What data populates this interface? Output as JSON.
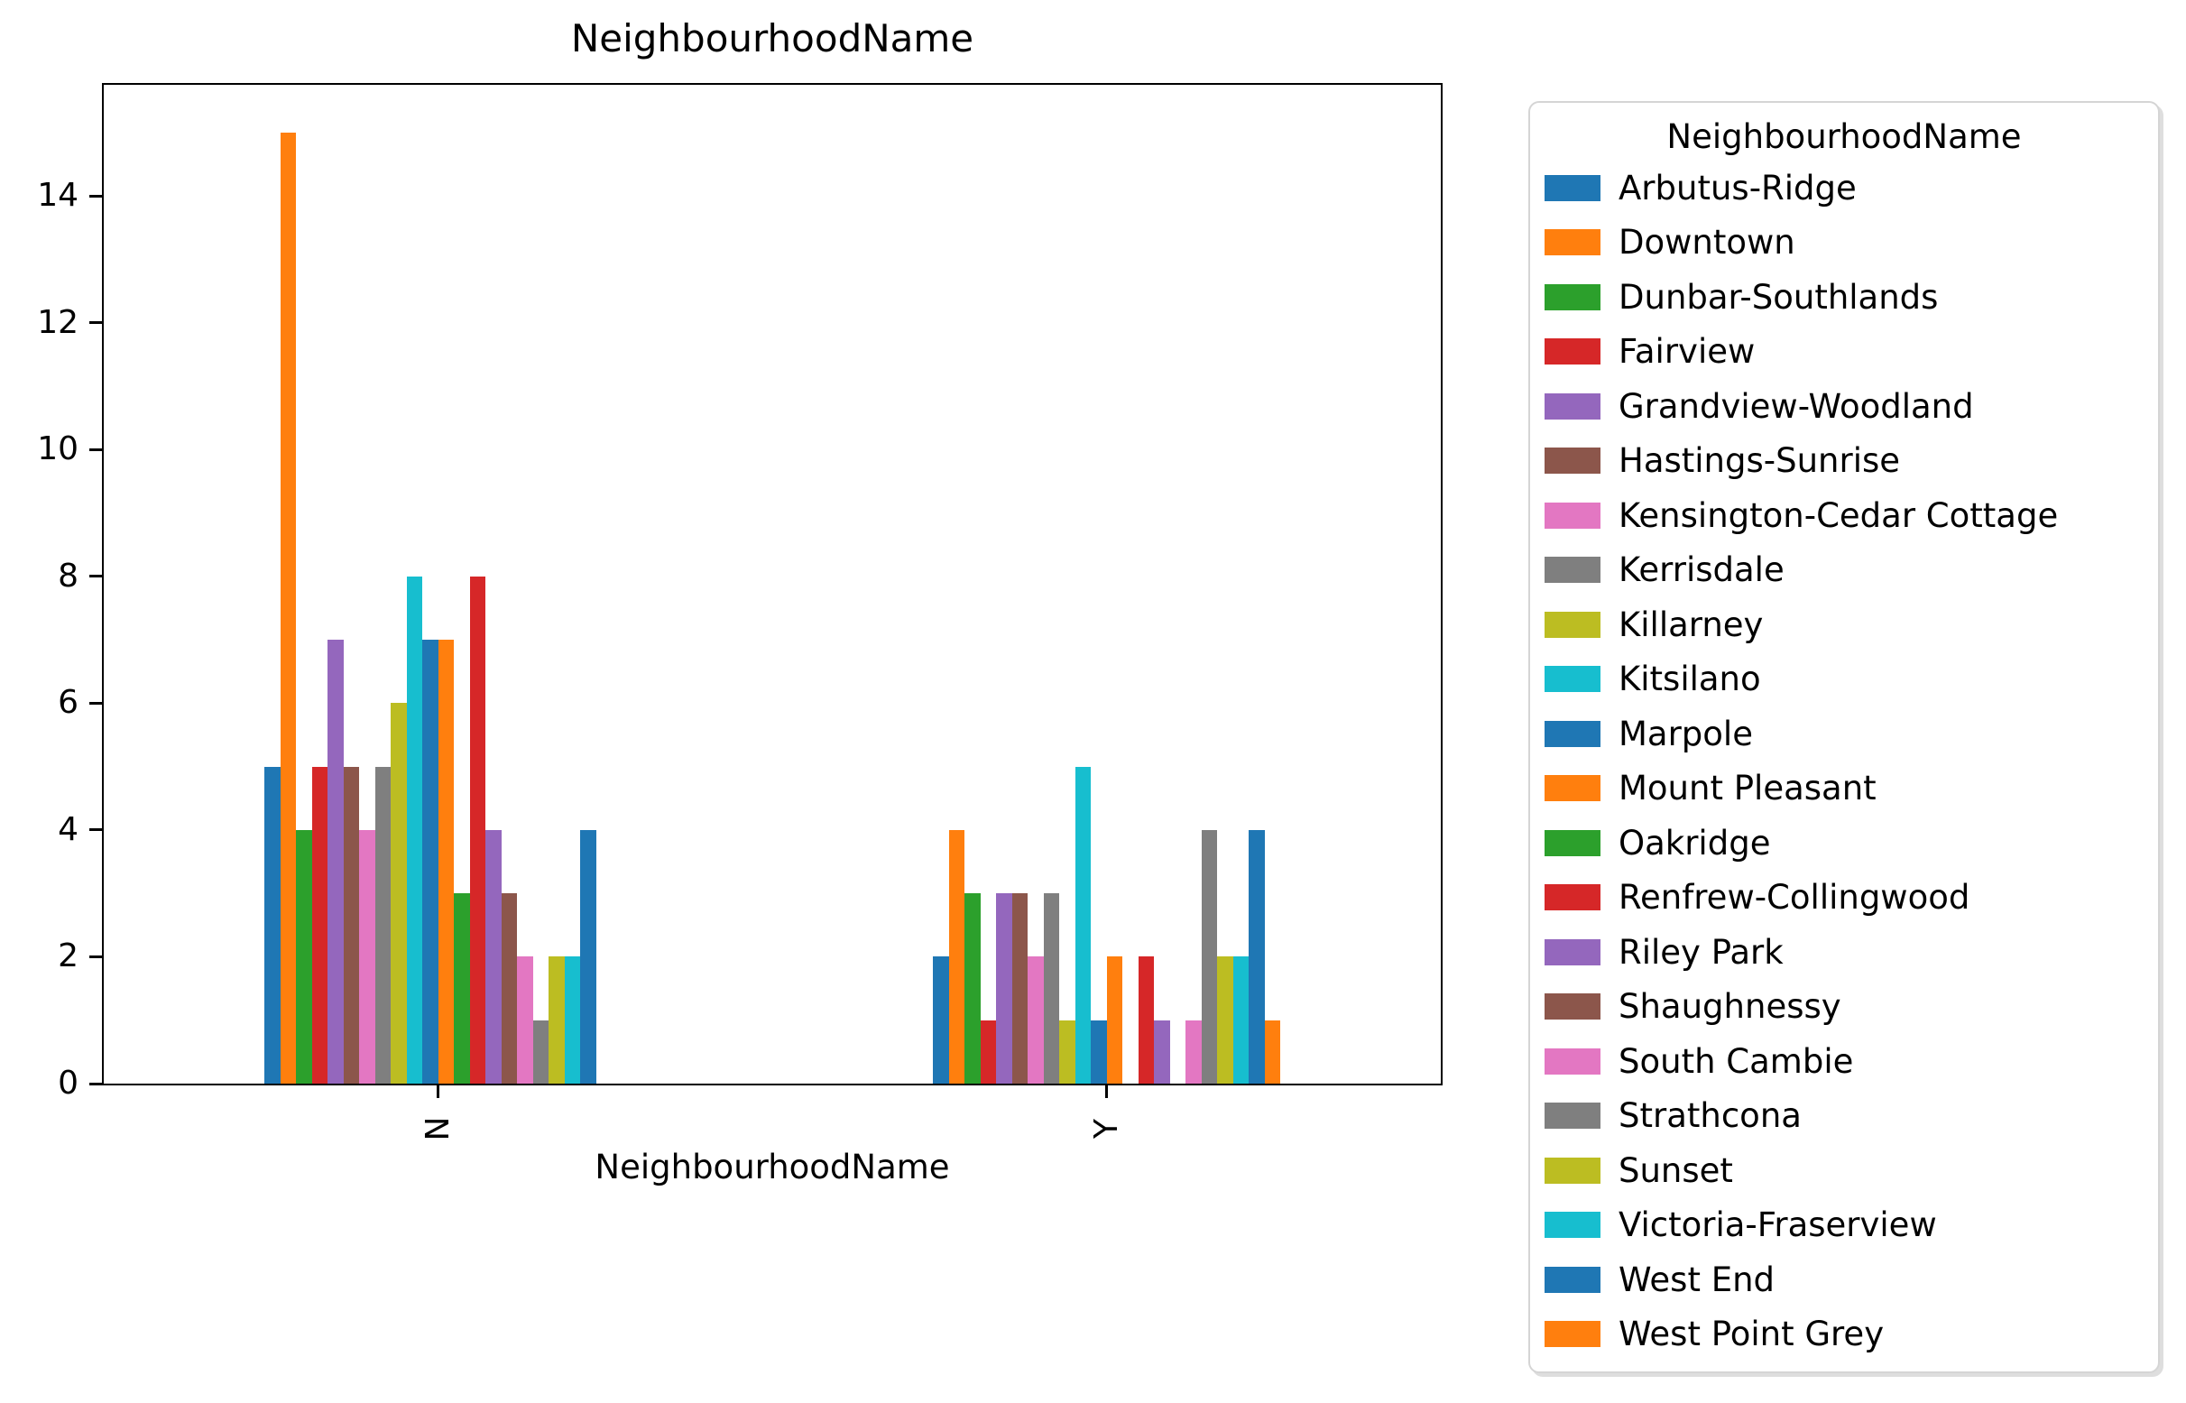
{
  "chart_data": {
    "type": "bar",
    "title": "NeighbourhoodName",
    "xlabel": "NeighbourhoodName",
    "ylabel": "",
    "legend_title": "NeighbourhoodName",
    "legend_position": "right",
    "grid": false,
    "categories": [
      "N",
      "Y"
    ],
    "yticks": [
      0,
      2,
      4,
      6,
      8,
      10,
      12,
      14
    ],
    "ylim": [
      0,
      15.75
    ],
    "series": [
      {
        "name": "Arbutus-Ridge",
        "color": "#1f77b4",
        "values": [
          5,
          2
        ]
      },
      {
        "name": "Downtown",
        "color": "#ff7f0e",
        "values": [
          15,
          4
        ]
      },
      {
        "name": "Dunbar-Southlands",
        "color": "#2ca02c",
        "values": [
          4,
          3
        ]
      },
      {
        "name": "Fairview",
        "color": "#d62728",
        "values": [
          5,
          1
        ]
      },
      {
        "name": "Grandview-Woodland",
        "color": "#9467bd",
        "values": [
          7,
          3
        ]
      },
      {
        "name": "Hastings-Sunrise",
        "color": "#8c564b",
        "values": [
          5,
          3
        ]
      },
      {
        "name": "Kensington-Cedar Cottage",
        "color": "#e377c2",
        "values": [
          4,
          2
        ]
      },
      {
        "name": "Kerrisdale",
        "color": "#7f7f7f",
        "values": [
          5,
          3
        ]
      },
      {
        "name": "Killarney",
        "color": "#bcbd22",
        "values": [
          6,
          1
        ]
      },
      {
        "name": "Kitsilano",
        "color": "#17becf",
        "values": [
          8,
          5
        ]
      },
      {
        "name": "Marpole",
        "color": "#1f77b4",
        "values": [
          7,
          1
        ]
      },
      {
        "name": "Mount Pleasant",
        "color": "#ff7f0e",
        "values": [
          7,
          2
        ]
      },
      {
        "name": "Oakridge",
        "color": "#2ca02c",
        "values": [
          3,
          0
        ]
      },
      {
        "name": "Renfrew-Collingwood",
        "color": "#d62728",
        "values": [
          8,
          2
        ]
      },
      {
        "name": "Riley Park",
        "color": "#9467bd",
        "values": [
          4,
          1
        ]
      },
      {
        "name": "Shaughnessy",
        "color": "#8c564b",
        "values": [
          3,
          0
        ]
      },
      {
        "name": "South Cambie",
        "color": "#e377c2",
        "values": [
          2,
          1
        ]
      },
      {
        "name": "Strathcona",
        "color": "#7f7f7f",
        "values": [
          1,
          4
        ]
      },
      {
        "name": "Sunset",
        "color": "#bcbd22",
        "values": [
          2,
          2
        ]
      },
      {
        "name": "Victoria-Fraserview",
        "color": "#17becf",
        "values": [
          2,
          2
        ]
      },
      {
        "name": "West End",
        "color": "#1f77b4",
        "values": [
          4,
          4
        ]
      },
      {
        "name": "West Point Grey",
        "color": "#ff7f0e",
        "values": [
          0,
          1
        ]
      }
    ]
  },
  "colors": {
    "spine": "#000000",
    "background": "#ffffff",
    "legend_border": "#d5d5d5"
  }
}
